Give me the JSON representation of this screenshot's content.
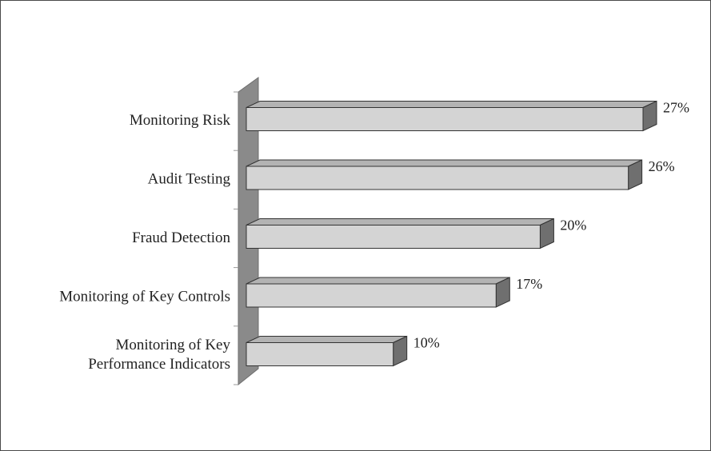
{
  "chart_data": {
    "type": "bar",
    "orientation": "horizontal",
    "style": "3d",
    "categories": [
      [
        "Monitoring Risk"
      ],
      [
        "Audit Testing"
      ],
      [
        "Fraud Detection"
      ],
      [
        "Monitoring of Key Controls"
      ],
      [
        "Monitoring of Key",
        "Performance Indicators"
      ]
    ],
    "values": [
      27,
      26,
      20,
      17,
      10
    ],
    "value_labels": [
      "27%",
      "26%",
      "20%",
      "17%",
      "10%"
    ],
    "xlim": [
      0,
      27
    ],
    "grid": false,
    "legend": "none",
    "colors": {
      "bar_front": "#d4d4d4",
      "bar_top": "#b3b3b3",
      "bar_side": "#6f6f6f",
      "wall": "#8a8a8a",
      "wall_dark": "#6e6e6e",
      "outline": "#333333"
    }
  }
}
